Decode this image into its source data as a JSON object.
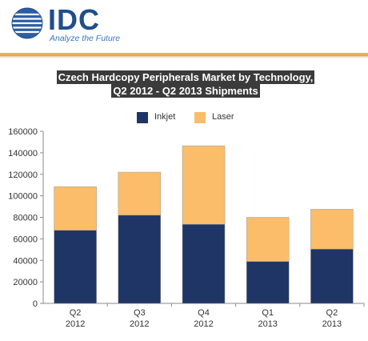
{
  "header": {
    "logo_text": "IDC",
    "tagline": "Analyze the Future"
  },
  "colors": {
    "brand_blue": "#1f4e8c",
    "accent_orange": "#f0a030",
    "inkjet": "#1f3565",
    "laser": "#fbbd6a"
  },
  "chart_data": {
    "type": "bar",
    "stacked": true,
    "title": "Czech Hardcopy Peripherals Market by Technology,",
    "subtitle": "Q2 2012 - Q2 2013 Shipments",
    "categories": [
      [
        "Q2",
        "2012"
      ],
      [
        "Q3",
        "2012"
      ],
      [
        "Q4",
        "2012"
      ],
      [
        "Q1",
        "2013"
      ],
      [
        "Q2",
        "2013"
      ]
    ],
    "series": [
      {
        "name": "Inkjet",
        "color": "#1f3565",
        "values": [
          68000,
          82000,
          73500,
          39000,
          50500
        ]
      },
      {
        "name": "Laser",
        "color": "#fbbd6a",
        "values": [
          40500,
          40000,
          73000,
          41000,
          37000
        ]
      }
    ],
    "ylim": [
      0,
      160000
    ],
    "yticks": [
      "0",
      "20000",
      "40000",
      "60000",
      "80000",
      "100000",
      "120000",
      "140000",
      "160000"
    ],
    "grid": false,
    "legend": "top"
  }
}
